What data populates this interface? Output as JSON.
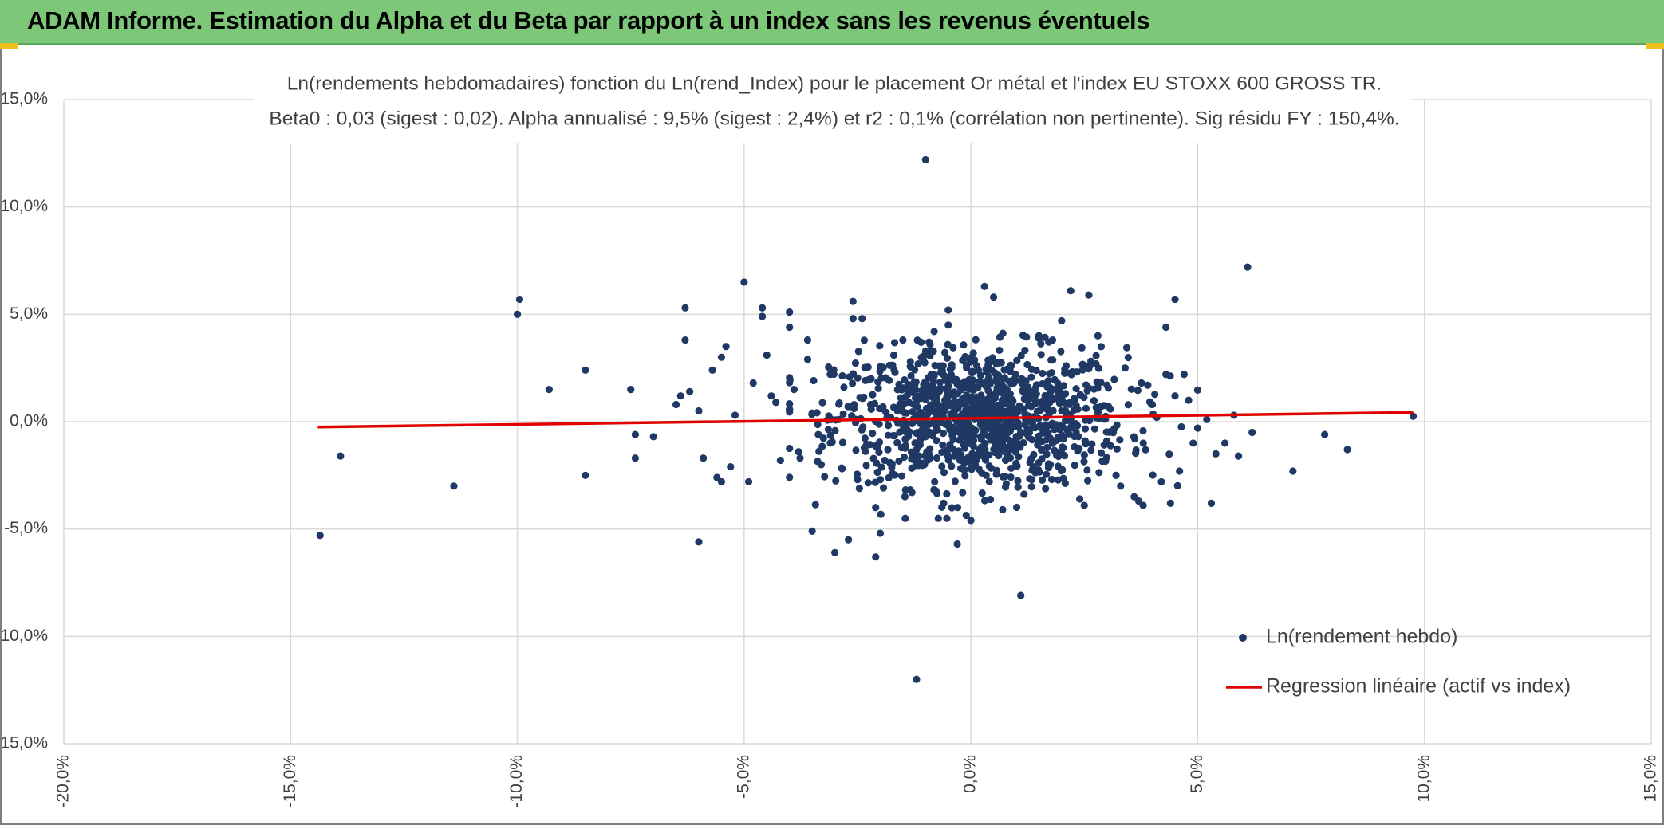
{
  "header": {
    "title": "ADAM Informe. Estimation du Alpha et du Beta par rapport à un index sans les revenus éventuels"
  },
  "colors": {
    "header_bg": "#7cc878",
    "points": "#203864",
    "regression": "#e00000",
    "grid": "#d9d9d9",
    "accent": "#f0c020"
  },
  "chart_data": {
    "type": "scatter",
    "title": "Ln(rendements hebdomadaires) fonction du Ln(rend_Index) pour le placement Or métal et l'index EU STOXX 600 GROSS TR.",
    "subtitle": "Beta0 : 0,03 (sigest : 0,02). Alpha annualisé : 9,5% (sigest : 2,4%) et r2 : 0,1% (corrélation non pertinente). Sig résidu FY : 150,4%.",
    "xlim": [
      -0.2,
      0.15
    ],
    "ylim": [
      -0.15,
      0.15
    ],
    "x_ticks": [
      "-20,0%",
      "-15,0%",
      "-10,0%",
      "-5,0%",
      "0,0%",
      "5,0%",
      "10,0%",
      "15,0%"
    ],
    "y_ticks": [
      "15,0%",
      "10,0%",
      "5,0%",
      "0,0%",
      "-5,0%",
      "-10,0%",
      "-15,0%"
    ],
    "grid": true,
    "legend_position": "bottom-right",
    "legend": [
      "Ln(rendement hebdo)",
      "Regression linéaire (actif vs index)"
    ],
    "regression": {
      "x": [
        -0.144,
        0.0975
      ],
      "y": [
        -0.0025,
        0.0043
      ]
    },
    "cluster": {
      "center": [
        0.002,
        0.002
      ],
      "sd": [
        0.016,
        0.016
      ],
      "count": 1100
    },
    "scatter_points": [
      [
        -0.1435,
        -0.053
      ],
      [
        -0.139,
        -0.016
      ],
      [
        -0.114,
        -0.03
      ],
      [
        -0.1,
        0.05
      ],
      [
        -0.0995,
        0.057
      ],
      [
        -0.093,
        0.015
      ],
      [
        -0.085,
        0.024
      ],
      [
        -0.085,
        -0.025
      ],
      [
        -0.075,
        0.015
      ],
      [
        -0.074,
        -0.006
      ],
      [
        -0.074,
        -0.017
      ],
      [
        -0.07,
        -0.007
      ],
      [
        -0.065,
        0.008
      ],
      [
        -0.064,
        0.012
      ],
      [
        -0.063,
        0.053
      ],
      [
        -0.063,
        0.038
      ],
      [
        -0.062,
        0.014
      ],
      [
        -0.06,
        0.005
      ],
      [
        -0.06,
        -0.056
      ],
      [
        -0.059,
        -0.017
      ],
      [
        -0.057,
        0.024
      ],
      [
        -0.056,
        -0.026
      ],
      [
        -0.055,
        -0.028
      ],
      [
        -0.055,
        0.03
      ],
      [
        -0.054,
        0.035
      ],
      [
        -0.053,
        -0.021
      ],
      [
        -0.052,
        0.003
      ],
      [
        -0.05,
        0.065
      ],
      [
        -0.049,
        -0.028
      ],
      [
        -0.048,
        0.018
      ],
      [
        -0.046,
        0.053
      ],
      [
        -0.046,
        0.049
      ],
      [
        -0.045,
        0.031
      ],
      [
        -0.044,
        0.012
      ],
      [
        -0.043,
        0.009
      ],
      [
        -0.042,
        -0.018
      ],
      [
        -0.04,
        0.051
      ],
      [
        -0.04,
        0.044
      ],
      [
        -0.039,
        0.015
      ],
      [
        -0.038,
        -0.014
      ],
      [
        -0.036,
        0.038
      ],
      [
        -0.036,
        0.029
      ],
      [
        -0.035,
        -0.051
      ],
      [
        -0.035,
        0.004
      ],
      [
        -0.033,
        -0.02
      ],
      [
        -0.031,
        -0.01
      ],
      [
        -0.03,
        -0.061
      ],
      [
        -0.028,
        0.016
      ],
      [
        -0.027,
        -0.055
      ],
      [
        -0.026,
        0.056
      ],
      [
        -0.026,
        0.048
      ],
      [
        -0.025,
        -0.027
      ],
      [
        -0.024,
        0.048
      ],
      [
        -0.023,
        -0.011
      ],
      [
        -0.022,
        0.02
      ],
      [
        -0.021,
        -0.063
      ],
      [
        -0.02,
        -0.052
      ],
      [
        -0.021,
        -0.04
      ],
      [
        -0.019,
        -0.018
      ],
      [
        -0.017,
        0.031
      ],
      [
        -0.015,
        0.038
      ],
      [
        -0.013,
        -0.033
      ],
      [
        -0.012,
        -0.12
      ],
      [
        -0.011,
        0.037
      ],
      [
        -0.01,
        0.122
      ],
      [
        -0.01,
        -0.007
      ],
      [
        -0.009,
        0.036
      ],
      [
        -0.008,
        -0.028
      ],
      [
        -0.006,
        -0.038
      ],
      [
        -0.005,
        0.052
      ],
      [
        -0.003,
        -0.057
      ],
      [
        0.0,
        -0.046
      ],
      [
        0.003,
        0.063
      ],
      [
        0.005,
        0.058
      ],
      [
        0.007,
        -0.041
      ],
      [
        0.011,
        -0.081
      ],
      [
        0.013,
        -0.019
      ],
      [
        0.015,
        0.04
      ],
      [
        0.018,
        0.038
      ],
      [
        0.02,
        0.047
      ],
      [
        0.021,
        0.026
      ],
      [
        0.022,
        0.061
      ],
      [
        0.024,
        -0.036
      ],
      [
        0.025,
        -0.039
      ],
      [
        0.026,
        0.059
      ],
      [
        0.028,
        0.04
      ],
      [
        0.03,
        0.017
      ],
      [
        0.032,
        -0.025
      ],
      [
        0.033,
        -0.03
      ],
      [
        0.034,
        0.025
      ],
      [
        0.036,
        -0.035
      ],
      [
        0.037,
        -0.037
      ],
      [
        0.038,
        -0.01
      ],
      [
        0.039,
        0.017
      ],
      [
        0.04,
        0.008
      ],
      [
        0.041,
        0.002
      ],
      [
        0.042,
        -0.028
      ],
      [
        0.043,
        0.044
      ],
      [
        0.043,
        0.022
      ],
      [
        0.044,
        -0.038
      ],
      [
        0.045,
        0.057
      ],
      [
        0.045,
        0.012
      ],
      [
        0.046,
        -0.023
      ],
      [
        0.047,
        0.022
      ],
      [
        0.048,
        0.01
      ],
      [
        0.049,
        -0.01
      ],
      [
        0.05,
        -0.003
      ],
      [
        0.052,
        0.001
      ],
      [
        0.053,
        -0.038
      ],
      [
        0.054,
        -0.015
      ],
      [
        0.056,
        -0.01
      ],
      [
        0.058,
        0.003
      ],
      [
        0.059,
        -0.016
      ],
      [
        0.061,
        0.072
      ],
      [
        0.062,
        -0.005
      ],
      [
        0.071,
        -0.023
      ],
      [
        0.078,
        -0.006
      ],
      [
        0.083,
        -0.013
      ],
      [
        0.0975,
        0.0025
      ]
    ]
  }
}
